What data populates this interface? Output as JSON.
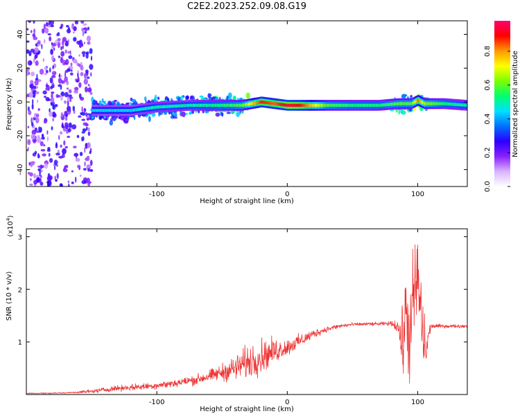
{
  "title": "C2E2.2023.252.09.08.G19",
  "chart_data": [
    {
      "type": "heatmap",
      "title": "",
      "xlabel": "Height of straight line (km)",
      "ylabel": "Frequency (Hz)",
      "xlim": [
        -200,
        138
      ],
      "ylim": [
        -50,
        48
      ],
      "xticks": [
        -100,
        0,
        100
      ],
      "xtick_labels": [
        "-100",
        "0",
        "100"
      ],
      "yticks": [
        -40,
        -20,
        0,
        20,
        40
      ],
      "ytick_labels": [
        "-40",
        "-20",
        "0",
        "20",
        "40"
      ],
      "colorbar": {
        "label": "Normalized spectral amplitude",
        "range": [
          0,
          0.98
        ],
        "ticks": [
          0,
          0.2,
          0.4,
          0.6,
          0.8
        ],
        "tick_labels": [
          "0.0",
          "0.2",
          "0.4",
          "0.6",
          "0.8"
        ],
        "colormap": [
          "#ffffff",
          "#d9b3ff",
          "#8a1fff",
          "#2a00ff",
          "#0070ff",
          "#00e0ff",
          "#00ff70",
          "#7cff00",
          "#ffff00",
          "#ff9900",
          "#ff0000",
          "#ff0070"
        ]
      },
      "ridge": {
        "x": [
          -200,
          -150,
          -120,
          -100,
          -75,
          -50,
          -35,
          -20,
          -10,
          0,
          10,
          30,
          50,
          70,
          85,
          95,
          100,
          105,
          120,
          138
        ],
        "frequency": [
          -2,
          -5,
          -5,
          -3,
          -2,
          -2,
          -2,
          0,
          -1,
          -2,
          -2,
          -2,
          -2,
          -2,
          -1,
          -1,
          1,
          -1,
          -1,
          -2
        ],
        "amplitude": [
          0.15,
          0.45,
          0.45,
          0.5,
          0.5,
          0.55,
          0.6,
          0.9,
          0.85,
          0.95,
          0.9,
          0.6,
          0.55,
          0.55,
          0.6,
          0.6,
          0.85,
          0.65,
          0.55,
          0.5
        ]
      }
    },
    {
      "type": "line",
      "title": "",
      "xlabel": "Height of straight line (km)",
      "ylabel": "SNR (10 * v/v)",
      "y_multiplier": "(x10^4)",
      "y_multiplier_base": "(x10",
      "y_multiplier_exp": "4",
      "y_multiplier_close": ")",
      "xlim": [
        -200,
        138
      ],
      "ylim": [
        0,
        3.15
      ],
      "xticks": [
        -100,
        0,
        100
      ],
      "xtick_labels": [
        "-100",
        "0",
        "100"
      ],
      "yticks": [
        1,
        2,
        3
      ],
      "ytick_labels": [
        "1",
        "2",
        "3"
      ],
      "color": "#ee3333",
      "series": [
        {
          "x": [
            -200,
            -170,
            -150,
            -130,
            -110,
            -90,
            -70,
            -55,
            -40,
            -30,
            -20,
            -10,
            0,
            10,
            20,
            30,
            40,
            50,
            60,
            70,
            80,
            85,
            88,
            91,
            94,
            97,
            100,
            103,
            106,
            110,
            120,
            138
          ],
          "y": [
            0.02,
            0.03,
            0.06,
            0.12,
            0.15,
            0.2,
            0.28,
            0.38,
            0.5,
            0.62,
            0.72,
            0.82,
            0.9,
            1.02,
            1.15,
            1.24,
            1.3,
            1.33,
            1.34,
            1.34,
            1.35,
            1.3,
            0.9,
            1.6,
            1.0,
            1.9,
            2.2,
            1.4,
            0.8,
            1.3,
            1.3,
            1.3
          ],
          "noise": [
            0.01,
            0.01,
            0.03,
            0.05,
            0.06,
            0.07,
            0.09,
            0.12,
            0.22,
            0.3,
            0.3,
            0.22,
            0.15,
            0.12,
            0.08,
            0.05,
            0.04,
            0.03,
            0.03,
            0.03,
            0.04,
            0.15,
            0.6,
            0.8,
            0.9,
            0.9,
            0.9,
            0.8,
            0.5,
            0.04,
            0.03,
            0.03
          ]
        }
      ]
    }
  ]
}
